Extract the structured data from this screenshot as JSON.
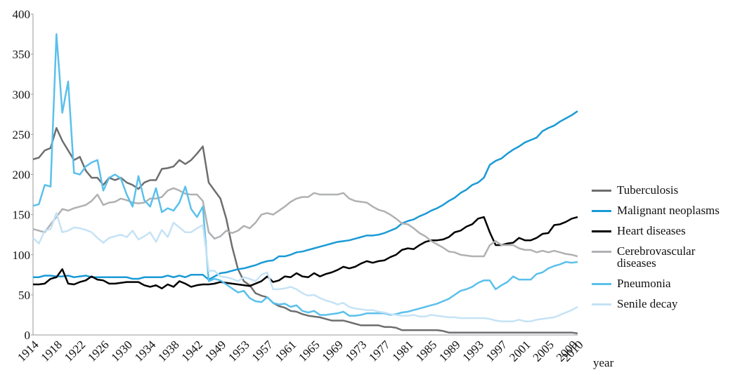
{
  "chart_data": {
    "type": "line",
    "x_label": "year",
    "legend": "right",
    "grid": false,
    "categories": [
      "1914",
      null,
      null,
      null,
      "1918",
      null,
      null,
      null,
      "1922",
      null,
      null,
      null,
      "1926",
      null,
      null,
      null,
      "1930",
      null,
      null,
      null,
      "1934",
      null,
      null,
      null,
      "1938",
      null,
      null,
      null,
      "1942",
      null,
      null,
      null,
      "1949",
      null,
      null,
      null,
      "1953",
      null,
      null,
      null,
      "1957",
      null,
      null,
      null,
      "1961",
      null,
      null,
      null,
      "1965",
      null,
      null,
      null,
      "1969",
      null,
      null,
      null,
      "1973",
      null,
      null,
      null,
      "1977",
      null,
      null,
      null,
      "1981",
      null,
      null,
      null,
      "1985",
      null,
      null,
      null,
      "1989",
      null,
      null,
      null,
      "1993",
      null,
      null,
      null,
      "1997",
      null,
      null,
      null,
      "2001",
      null,
      null,
      null,
      "2005",
      null,
      null,
      null,
      "2009",
      "2010"
    ],
    "ylim": [
      0,
      400
    ],
    "yticks": [
      0,
      50,
      100,
      150,
      200,
      250,
      300,
      350,
      400
    ],
    "series": [
      {
        "name": "Tuberculosis",
        "color": "#6d6e70",
        "values": [
          219,
          221,
          230,
          233,
          258,
          242,
          230,
          218,
          222,
          205,
          196,
          196,
          187,
          196,
          193,
          196,
          190,
          187,
          182,
          190,
          193,
          193,
          207,
          208,
          210,
          218,
          213,
          218,
          226,
          235,
          190,
          180,
          170,
          145,
          110,
          82,
          67,
          62,
          52,
          49,
          47,
          40,
          36,
          34,
          30,
          29,
          26,
          24,
          23,
          22,
          20,
          18,
          18,
          18,
          16,
          14,
          12,
          12,
          12,
          12,
          10,
          10,
          9,
          6,
          6,
          6,
          6,
          6,
          6,
          6,
          5,
          3,
          3,
          3,
          3,
          3,
          3,
          3,
          3,
          3,
          3,
          3,
          3,
          3,
          3,
          3,
          3,
          3,
          3,
          3,
          3,
          3,
          3,
          2
        ]
      },
      {
        "name": "Malignant neoplasms",
        "color": "#1a9ad6",
        "values": [
          72,
          72,
          74,
          74,
          73,
          73,
          74,
          72,
          73,
          74,
          72,
          72,
          72,
          72,
          72,
          72,
          72,
          70,
          70,
          72,
          72,
          72,
          72,
          74,
          72,
          74,
          72,
          75,
          75,
          75,
          69,
          73,
          77,
          78,
          80,
          82,
          83,
          85,
          87,
          90,
          92,
          93,
          98,
          98,
          100,
          103,
          104,
          106,
          108,
          110,
          112,
          114,
          116,
          117,
          118,
          120,
          122,
          124,
          124,
          125,
          127,
          130,
          133,
          139,
          142,
          144,
          148,
          151,
          155,
          158,
          162,
          167,
          171,
          177,
          181,
          187,
          190,
          196,
          212,
          217,
          220,
          226,
          231,
          235,
          240,
          243,
          246,
          254,
          258,
          261,
          266,
          270,
          274,
          279
        ]
      },
      {
        "name": "Heart diseases",
        "color": "#000000",
        "values": [
          63,
          63,
          64,
          70,
          72,
          82,
          64,
          63,
          66,
          68,
          73,
          69,
          68,
          64,
          64,
          65,
          66,
          66,
          66,
          62,
          60,
          62,
          58,
          63,
          60,
          67,
          64,
          60,
          62,
          63,
          63,
          64,
          66,
          65,
          64,
          63,
          62,
          61,
          64,
          67,
          73,
          66,
          68,
          73,
          72,
          77,
          73,
          72,
          77,
          73,
          76,
          78,
          81,
          85,
          83,
          85,
          89,
          92,
          90,
          92,
          93,
          97,
          100,
          106,
          108,
          107,
          112,
          116,
          118,
          118,
          119,
          122,
          128,
          130,
          135,
          138,
          145,
          147,
          128,
          112,
          112,
          114,
          115,
          121,
          118,
          118,
          121,
          126,
          127,
          137,
          138,
          141,
          145,
          147
        ]
      },
      {
        "name": "Cerebrovascular diseases",
        "color": "#b0b1b3",
        "values": [
          132,
          130,
          128,
          138,
          147,
          157,
          155,
          158,
          160,
          162,
          167,
          175,
          162,
          165,
          166,
          170,
          168,
          165,
          164,
          165,
          170,
          170,
          172,
          180,
          183,
          180,
          176,
          175,
          175,
          167,
          128,
          120,
          123,
          130,
          127,
          130,
          136,
          133,
          140,
          150,
          152,
          150,
          155,
          160,
          166,
          170,
          172,
          172,
          177,
          175,
          175,
          175,
          175,
          177,
          170,
          167,
          166,
          165,
          160,
          156,
          154,
          150,
          145,
          139,
          138,
          133,
          127,
          123,
          117,
          113,
          109,
          104,
          103,
          100,
          99,
          98,
          98,
          98,
          112,
          117,
          112,
          112,
          112,
          108,
          106,
          106,
          103,
          105,
          103,
          105,
          103,
          101,
          100,
          98
        ]
      },
      {
        "name": "Pneumonia",
        "color": "#5bc0eb",
        "values": [
          161,
          163,
          187,
          185,
          375,
          277,
          316,
          202,
          200,
          210,
          215,
          218,
          180,
          196,
          200,
          195,
          175,
          160,
          198,
          168,
          160,
          183,
          153,
          158,
          155,
          165,
          185,
          157,
          147,
          160,
          67,
          70,
          68,
          63,
          58,
          53,
          55,
          46,
          42,
          41,
          47,
          40,
          38,
          39,
          35,
          37,
          30,
          28,
          30,
          25,
          25,
          26,
          27,
          29,
          24,
          24,
          25,
          27,
          27,
          27,
          27,
          25,
          26,
          28,
          29,
          31,
          33,
          35,
          37,
          39,
          42,
          45,
          50,
          55,
          57,
          60,
          65,
          68,
          68,
          57,
          62,
          66,
          73,
          69,
          69,
          69,
          76,
          78,
          83,
          86,
          88,
          91,
          90,
          91
        ]
      },
      {
        "name": "Senile decay",
        "color": "#c5e3f5",
        "values": [
          121,
          114,
          130,
          132,
          152,
          128,
          130,
          134,
          133,
          131,
          128,
          121,
          115,
          121,
          123,
          125,
          122,
          130,
          119,
          123,
          128,
          116,
          131,
          122,
          140,
          134,
          128,
          128,
          133,
          137,
          80,
          80,
          73,
          72,
          70,
          67,
          72,
          70,
          67,
          75,
          78,
          57,
          57,
          58,
          60,
          57,
          52,
          49,
          50,
          46,
          43,
          41,
          38,
          40,
          35,
          33,
          32,
          31,
          31,
          29,
          28,
          26,
          25,
          24,
          24,
          25,
          23,
          23,
          25,
          24,
          23,
          22,
          22,
          21,
          21,
          21,
          21,
          21,
          20,
          18,
          17,
          17,
          17,
          19,
          17,
          17,
          19,
          20,
          21,
          22,
          25,
          28,
          31,
          35
        ]
      }
    ]
  }
}
